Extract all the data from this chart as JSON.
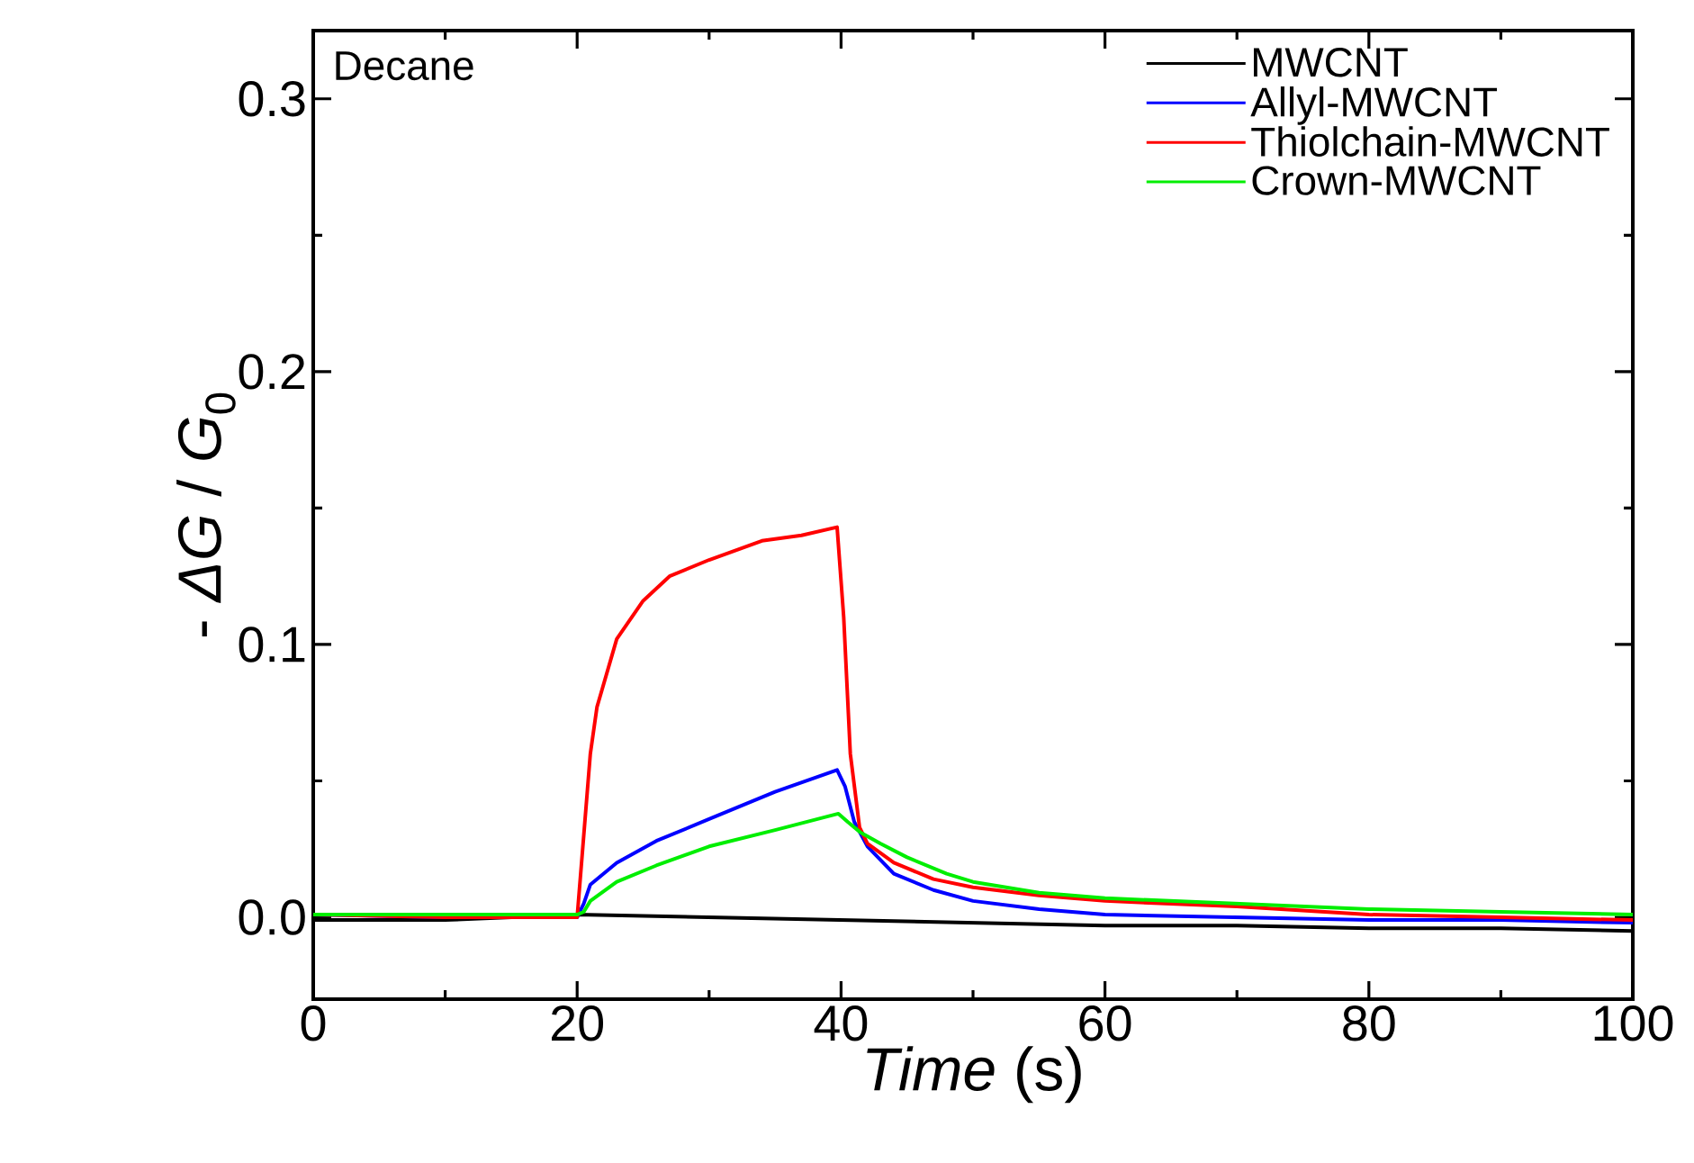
{
  "chart_data": {
    "type": "line",
    "xlabel": "*Time* (s)",
    "ylabel": "- *ΔG* / *G*$_{0}$",
    "annotations": [
      "Decane"
    ],
    "xlim": [
      0,
      100
    ],
    "ylim": [
      -0.03,
      0.325
    ],
    "xticks": [
      0,
      20,
      40,
      60,
      80,
      100
    ],
    "yticks": [
      {
        "value": 0,
        "label": "0.0"
      },
      0.1,
      0.2,
      0.3
    ],
    "grid": false,
    "legend": "top right",
    "marker": "none",
    "line_style": "solid",
    "series": [
      {
        "name": "MWCNT",
        "color": "#000000",
        "x": [
          0,
          10,
          20,
          30,
          40,
          50,
          60,
          70,
          80,
          90,
          100
        ],
        "values": [
          -0.001,
          -0.001,
          0.001,
          0.0,
          -0.001,
          -0.002,
          -0.003,
          -0.003,
          -0.004,
          -0.004,
          -0.005
        ]
      },
      {
        "name": "Allyl-MWCNT",
        "color": "#0000ff",
        "x": [
          0,
          10,
          20,
          20.5,
          21,
          23,
          26,
          30,
          35,
          39.7,
          40.3,
          41,
          42,
          44,
          47,
          50,
          55,
          60,
          70,
          80,
          90,
          100
        ],
        "values": [
          0.001,
          0.0,
          0.0,
          0.005,
          0.012,
          0.02,
          0.028,
          0.036,
          0.046,
          0.054,
          0.048,
          0.035,
          0.026,
          0.016,
          0.01,
          0.006,
          0.003,
          0.001,
          0.0,
          -0.001,
          -0.001,
          -0.002
        ]
      },
      {
        "name": "Thiolchain-MWCNT",
        "color": "#ff0000",
        "x": [
          0,
          10,
          20,
          20.5,
          21,
          21.5,
          23,
          25,
          27,
          30,
          34,
          37,
          39.7,
          40.2,
          40.7,
          41.4,
          42,
          44,
          47,
          50,
          55,
          60,
          70,
          80,
          90,
          100
        ],
        "values": [
          0.001,
          0.0,
          0.0,
          0.03,
          0.06,
          0.077,
          0.102,
          0.116,
          0.125,
          0.131,
          0.138,
          0.14,
          0.143,
          0.11,
          0.06,
          0.033,
          0.027,
          0.02,
          0.014,
          0.011,
          0.008,
          0.006,
          0.004,
          0.001,
          0.0,
          -0.001
        ]
      },
      {
        "name": "Crown-MWCNT",
        "color": "#00ee00",
        "x": [
          0,
          10,
          20,
          20.5,
          21,
          23,
          26,
          30,
          35,
          39.8,
          40.5,
          41.5,
          43,
          45,
          48,
          50,
          55,
          60,
          70,
          80,
          90,
          100
        ],
        "values": [
          0.001,
          0.001,
          0.001,
          0.002,
          0.006,
          0.013,
          0.019,
          0.026,
          0.032,
          0.038,
          0.035,
          0.031,
          0.027,
          0.022,
          0.016,
          0.013,
          0.009,
          0.007,
          0.005,
          0.003,
          0.002,
          0.001
        ]
      }
    ]
  }
}
